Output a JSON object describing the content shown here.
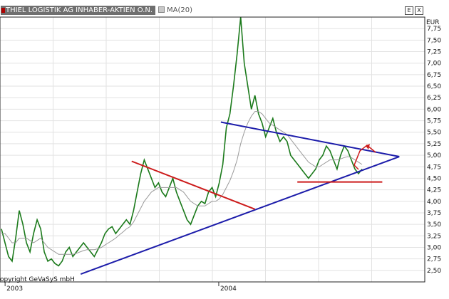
{
  "window": {
    "title": "THIEL LOGISTIK AG INHABER-AKTIEN O.N.",
    "indicator": "MA(20)",
    "maximize_icon": "E",
    "close_icon": "X",
    "copyright": "opyright GeVaSyS mbH"
  },
  "chart_data": {
    "type": "line",
    "currency": "EUR",
    "ylim": [
      2.25,
      8.0
    ],
    "y_ticks": [
      "7,75",
      "7,50",
      "7,25",
      "7,00",
      "6,75",
      "6,50",
      "6,25",
      "6,00",
      "5,75",
      "5,50",
      "5,25",
      "5,00",
      "4,75",
      "4,50",
      "4,25",
      "4,00",
      "3,75",
      "3,50",
      "3,25",
      "3,00",
      "2,75",
      "2,50"
    ],
    "x_ticks": [
      "2003",
      "2004"
    ],
    "series": [
      {
        "color": "#1b7a1b",
        "values": [
          3.4,
          3.1,
          2.8,
          2.7,
          3.2,
          3.8,
          3.5,
          3.1,
          2.9,
          3.3,
          3.6,
          3.4,
          2.9,
          2.7,
          2.75,
          2.65,
          2.6,
          2.7,
          2.9,
          3.0,
          2.8,
          2.9,
          3.0,
          3.1,
          3.0,
          2.9,
          2.8,
          2.95,
          3.1,
          3.3,
          3.4,
          3.45,
          3.3,
          3.4,
          3.5,
          3.6,
          3.5,
          3.8,
          4.2,
          4.6,
          4.9,
          4.7,
          4.5,
          4.3,
          4.4,
          4.2,
          4.1,
          4.3,
          4.5,
          4.2,
          4.0,
          3.8,
          3.6,
          3.5,
          3.7,
          3.9,
          4.0,
          3.95,
          4.2,
          4.3,
          4.1,
          4.4,
          4.8,
          5.6,
          5.9,
          6.5,
          7.2,
          8.0,
          7.0,
          6.5,
          6.0,
          6.3,
          5.9,
          5.7,
          5.4,
          5.6,
          5.8,
          5.5,
          5.3,
          5.4,
          5.3,
          5.0,
          4.9,
          4.8,
          4.7,
          4.6,
          4.5,
          4.6,
          4.7,
          4.9,
          5.0,
          5.2,
          5.1,
          4.9,
          4.7,
          5.0,
          5.2,
          5.1,
          4.9,
          4.7,
          4.6,
          4.7
        ]
      },
      {
        "name": "MA(20)",
        "color": "#9a9a9a",
        "values": [
          3.3,
          3.3,
          3.2,
          3.1,
          3.1,
          3.2,
          3.2,
          3.2,
          3.15,
          3.1,
          3.15,
          3.2,
          3.1,
          3.0,
          2.95,
          2.9,
          2.85,
          2.85,
          2.85,
          2.85,
          2.85,
          2.87,
          2.9,
          2.93,
          2.95,
          2.95,
          2.95,
          2.97,
          3.0,
          3.05,
          3.1,
          3.15,
          3.2,
          3.27,
          3.33,
          3.4,
          3.45,
          3.55,
          3.7,
          3.85,
          4.0,
          4.1,
          4.2,
          4.25,
          4.3,
          4.3,
          4.3,
          4.3,
          4.3,
          4.3,
          4.25,
          4.2,
          4.1,
          4.0,
          3.95,
          3.9,
          3.9,
          3.9,
          3.95,
          4.0,
          4.0,
          4.05,
          4.15,
          4.3,
          4.45,
          4.65,
          4.9,
          5.25,
          5.5,
          5.7,
          5.85,
          5.95,
          5.95,
          5.9,
          5.8,
          5.7,
          5.65,
          5.6,
          5.55,
          5.5,
          5.45,
          5.35,
          5.25,
          5.15,
          5.05,
          4.95,
          4.85,
          4.8,
          4.75,
          4.75,
          4.8,
          4.85,
          4.9,
          4.9,
          4.9,
          4.92,
          4.95,
          4.97,
          4.95,
          4.9,
          4.85,
          4.8
        ]
      }
    ],
    "trendlines": [
      {
        "color": "#1c1caa",
        "from": [
          0.19,
          2.42
        ],
        "to": [
          0.94,
          4.97
        ]
      },
      {
        "color": "#1c1caa",
        "from": [
          0.52,
          5.72
        ],
        "to": [
          0.94,
          4.97
        ]
      },
      {
        "color": "#cc1a1a",
        "from": [
          0.31,
          4.87
        ],
        "to": [
          0.6,
          3.83
        ]
      },
      {
        "color": "#cc1a1a",
        "from": [
          0.7,
          4.42
        ],
        "to": [
          0.9,
          4.42
        ]
      }
    ]
  }
}
